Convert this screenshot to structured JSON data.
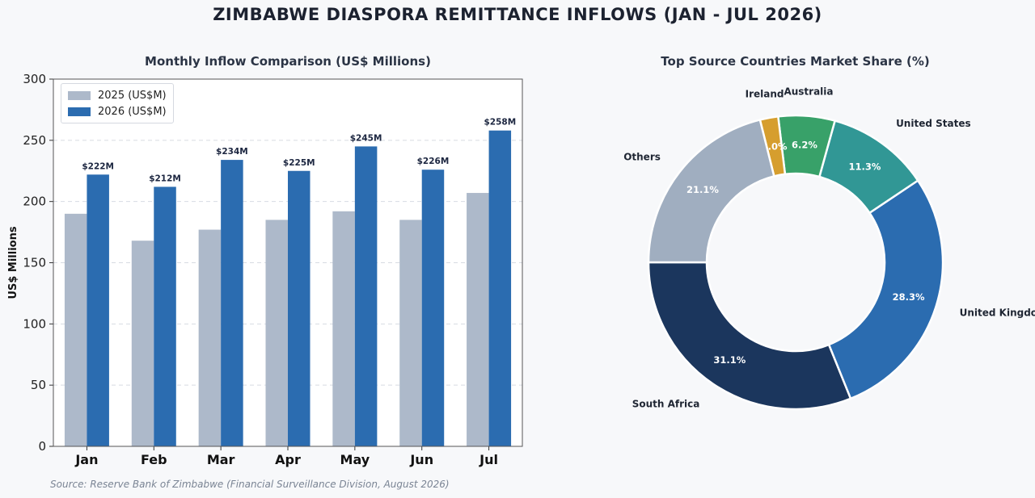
{
  "title": "ZIMBABWE DIASPORA REMITTANCE INFLOWS (JAN - JUL 2026)",
  "source": "Source: Reserve Bank of Zimbabwe (Financial Surveillance Division, August 2026)",
  "chart_data": [
    {
      "type": "bar",
      "title": "Monthly Inflow Comparison (US$ Millions)",
      "xlabel": "",
      "ylabel": "US$ Millions",
      "categories": [
        "Jan",
        "Feb",
        "Mar",
        "Apr",
        "May",
        "Jun",
        "Jul"
      ],
      "series": [
        {
          "name": "2025 (US$M)",
          "color": "#adb9ca",
          "values": [
            190,
            168,
            177,
            185,
            192,
            185,
            207
          ]
        },
        {
          "name": "2026 (US$M)",
          "color": "#2b6cb0",
          "values": [
            222,
            212,
            234,
            225,
            245,
            226,
            258
          ],
          "data_labels": [
            "$222M",
            "$212M",
            "$234M",
            "$225M",
            "$245M",
            "$226M",
            "$258M"
          ]
        }
      ],
      "ylim": [
        0,
        300
      ],
      "yticks": [
        "0",
        "50",
        "100",
        "150",
        "200",
        "250",
        "300"
      ],
      "grid": true,
      "legend": "top-left"
    },
    {
      "type": "pie",
      "title": "Top Source Countries Market Share (%)",
      "donut": true,
      "slices": [
        {
          "label": "South Africa",
          "value": 31.1,
          "display": "31.1%",
          "color": "#1b365d"
        },
        {
          "label": "United Kingdom",
          "value": 28.3,
          "display": "28.3%",
          "color": "#2b6cb0"
        },
        {
          "label": "United States",
          "value": 11.3,
          "display": "11.3%",
          "color": "#319795"
        },
        {
          "label": "Australia",
          "value": 6.2,
          "display": "6.2%",
          "color": "#38a169"
        },
        {
          "label": "Ireland",
          "value": 2.0,
          "display": "2.0%",
          "color": "#d69e2e"
        },
        {
          "label": "Others",
          "value": 21.1,
          "display": "21.1%",
          "color": "#a0aec0"
        }
      ]
    }
  ]
}
